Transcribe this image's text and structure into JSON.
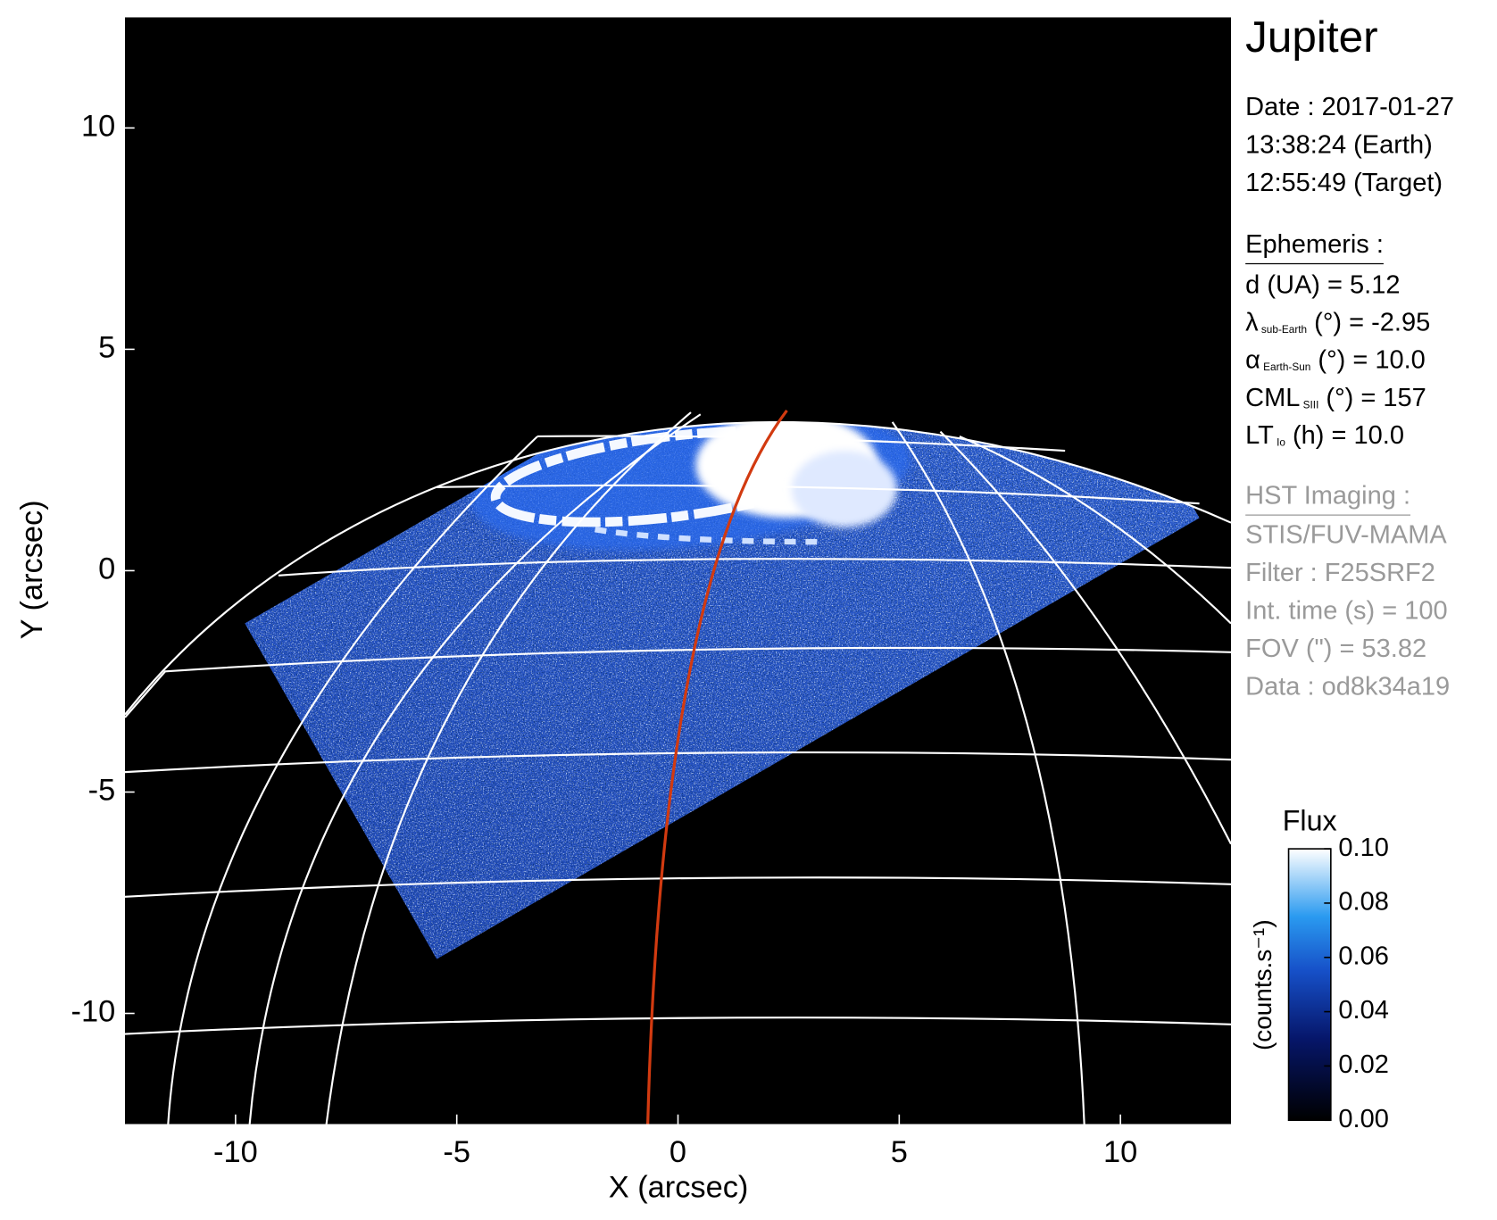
{
  "chart_data": {
    "type": "image",
    "xlabel": "X (arcsec)",
    "ylabel": "Y (arcsec)",
    "xlim": [
      -12.5,
      12.5
    ],
    "ylim": [
      -12.5,
      12.5
    ],
    "xticks": [
      -10,
      -5,
      0,
      5,
      10
    ],
    "yticks": [
      -10,
      -5,
      0,
      5,
      10
    ],
    "colorbar": {
      "title": "Flux",
      "label": "(counts.s⁻¹)",
      "lim": [
        0,
        0.1
      ],
      "ticks": [
        {
          "value": 0,
          "label": "0.00"
        },
        {
          "value": 0.02,
          "label": "0.02"
        },
        {
          "value": 0.04,
          "label": "0.04"
        },
        {
          "value": 0.06,
          "label": "0.06"
        },
        {
          "value": 0.08,
          "label": "0.08"
        },
        {
          "value": 0.1,
          "label": "0.10"
        }
      ]
    }
  },
  "panel": {
    "target": "Jupiter",
    "date": [
      "Date : 2017-01-27",
      "13:38:24 (Earth)",
      "12:55:49 (Target)"
    ],
    "ephemeris": {
      "title": "Ephemeris :",
      "lines": [
        {
          "main": "d (UA)    = 5.12"
        },
        {
          "main": "λ",
          "sub": "sub-Earth",
          "rest": " (°) = -2.95"
        },
        {
          "main": "α",
          "sub": "Earth-Sun",
          "rest": " (°) = 10.0"
        },
        {
          "main": "CML",
          "sub": "SIII",
          "rest": " (°) = 157"
        },
        {
          "main": "LT",
          "sub": "Io",
          "rest": " (h) = 10.0"
        }
      ]
    },
    "instrument": {
      "title": "HST Imaging :",
      "lines": [
        {
          "main": "STIS/FUV-MAMA"
        },
        {
          "main": "Filter : F25SRF2"
        },
        {
          "main": "Int. time (s) = 100"
        },
        {
          "main": "FOV (\") = 53.82"
        },
        {
          "main": "Data : od8k34a19"
        }
      ]
    }
  }
}
